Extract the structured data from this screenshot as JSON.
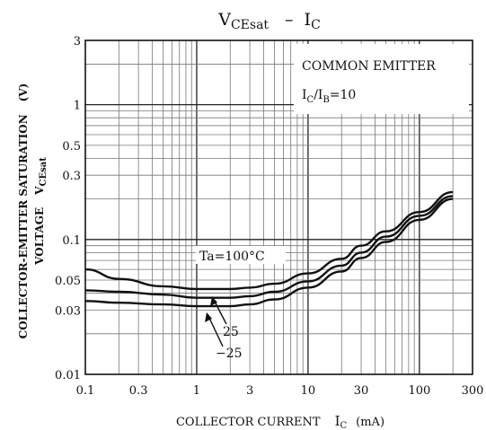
{
  "chart_data": {
    "type": "line",
    "title_main": "V",
    "title_sub": "CEsat",
    "title_dash": "–",
    "title_rhs_main": "I",
    "title_rhs_sub": "C",
    "xlabel_text": "COLLECTOR CURRENT",
    "xlabel_sym": "I",
    "xlabel_sub": "C",
    "xlabel_unit": "(mA)",
    "ylabel_line1": "COLLECTOR-EMITTER SATURATION",
    "ylabel_unit": "(V)",
    "ylabel_line2": "VOLTAGE",
    "ylabel_sym": "V",
    "ylabel_sub": "CEsat",
    "x_scale": "log",
    "y_scale": "log",
    "xlim": [
      0.1,
      300
    ],
    "ylim": [
      0.01,
      3
    ],
    "x_ticks": [
      "0.1",
      "0.3",
      "1",
      "3",
      "10",
      "30",
      "100",
      "300"
    ],
    "y_ticks": [
      "3",
      "1",
      "0.5",
      "0.3",
      "0.1",
      "0.05",
      "0.03",
      "0.01"
    ],
    "grid": true,
    "legend_box": {
      "line1": "COMMON EMITTER",
      "line2_main": "I",
      "line2_sub1": "C",
      "line2_mid": "/I",
      "line2_sub2": "B",
      "line2_end": "=10"
    },
    "annotations": {
      "ta": "Ta=100°C",
      "t25": "25",
      "tm25": "−25"
    },
    "series": [
      {
        "name": "Ta=100°C",
        "x": [
          0.1,
          0.2,
          0.5,
          1,
          2,
          3,
          5,
          10,
          20,
          30,
          50,
          100,
          200
        ],
        "y": [
          0.06,
          0.051,
          0.045,
          0.043,
          0.043,
          0.044,
          0.047,
          0.056,
          0.072,
          0.09,
          0.115,
          0.16,
          0.225
        ]
      },
      {
        "name": "25",
        "x": [
          0.1,
          0.2,
          0.5,
          1,
          2,
          3,
          5,
          10,
          20,
          30,
          50,
          100,
          200
        ],
        "y": [
          0.042,
          0.041,
          0.039,
          0.037,
          0.037,
          0.038,
          0.041,
          0.049,
          0.064,
          0.08,
          0.105,
          0.15,
          0.21
        ]
      },
      {
        "name": "−25",
        "x": [
          0.1,
          0.2,
          0.5,
          1,
          2,
          3,
          5,
          10,
          20,
          30,
          50,
          100,
          200
        ],
        "y": [
          0.035,
          0.034,
          0.033,
          0.032,
          0.032,
          0.033,
          0.036,
          0.044,
          0.058,
          0.073,
          0.096,
          0.14,
          0.2
        ]
      }
    ]
  }
}
